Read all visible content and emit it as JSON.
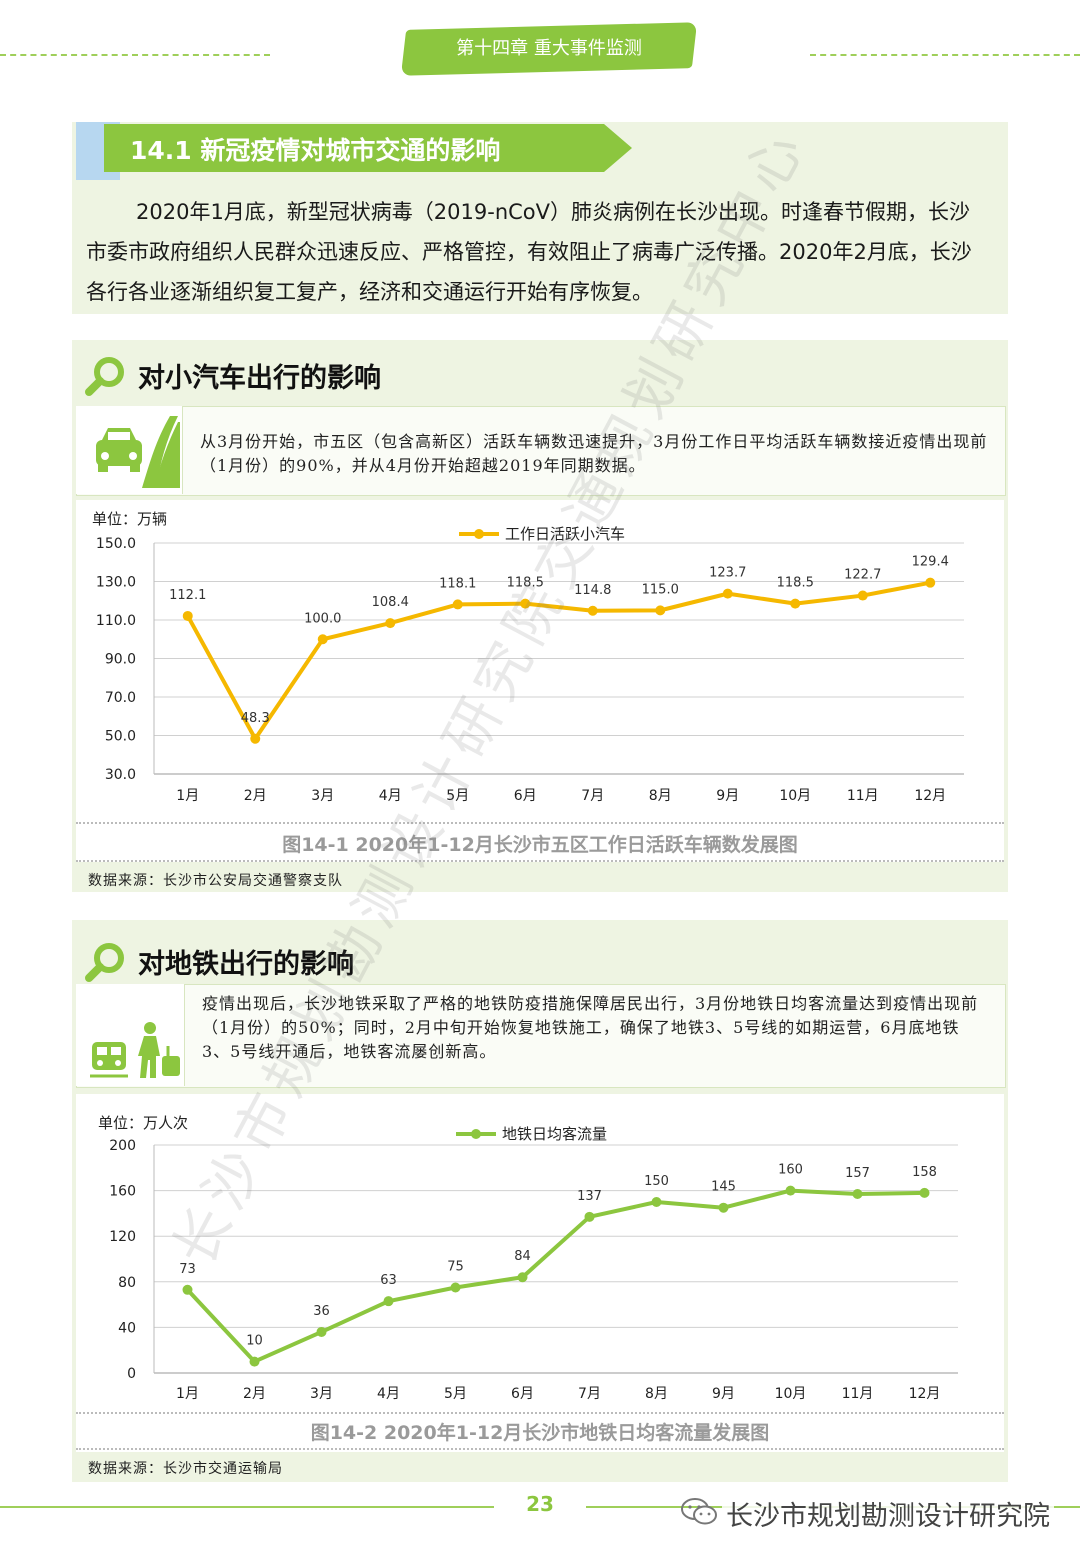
{
  "header": {
    "chapter": "第十四章  重大事件监测"
  },
  "section": {
    "title": "14.1 新冠疫情对城市交通的影响",
    "intro": "2020年1月底，新型冠状病毒（2019-nCoV）肺炎病例在长沙出现。时逢春节假期，长沙市委市政府组织人民群众迅速反应、严格管控，有效阻止了病毒广泛传播。2020年2月底，长沙各行各业逐渐组织复工复产，经济和交通运行开始有序恢复。"
  },
  "car": {
    "heading": "对小汽车出行的影响",
    "description": "从3月份开始，市五区（包含高新区）活跃车辆数迅速提升，3月份工作日平均活跃车辆数接近疫情出现前（1月份）的90%，并从4月份开始超越2019年同期数据。",
    "unit": "单位：万辆",
    "caption": "图14-1  2020年1-12月长沙市五区工作日活跃车辆数发展图",
    "source": "数据来源：长沙市公安局交通警察支队"
  },
  "metro": {
    "heading": "对地铁出行的影响",
    "description": "疫情出现后，长沙地铁采取了严格的地铁防疫措施保障居民出行，3月份地铁日均客流量达到疫情出现前（1月份）的50%；同时，2月中旬开始恢复地铁施工，确保了地铁3、5号线的如期运营，6月底地铁3、5号线开通后，地铁客流屡创新高。",
    "unit": "单位：万人次",
    "caption": "图14-2  2020年1-12月长沙市地铁日均客流量发展图",
    "source": "数据来源：长沙市交通运输局"
  },
  "watermark": {
    "text": "长沙市规划勘测设计研究院交通规划研究中心"
  },
  "footer": {
    "page": "23",
    "brand": "长沙市规划勘测设计研究院"
  },
  "colors": {
    "green": "#8cc63f",
    "yellow": "#f5b800",
    "panel": "#eef4e2"
  },
  "icons": [
    "magnifier-icon",
    "car-road-icon",
    "metro-traveler-icon",
    "wechat-icon"
  ],
  "chart_data": [
    {
      "type": "line",
      "categories": [
        "1月",
        "2月",
        "3月",
        "4月",
        "5月",
        "6月",
        "7月",
        "8月",
        "9月",
        "10月",
        "11月",
        "12月"
      ],
      "series": [
        {
          "name": "工作日活跃小汽车",
          "values": [
            112.1,
            48.3,
            100.0,
            108.4,
            118.1,
            118.5,
            114.8,
            115.0,
            123.7,
            118.5,
            122.7,
            129.4
          ]
        }
      ],
      "ylim": [
        30,
        150
      ],
      "yticks": [
        "30.0",
        "50.0",
        "70.0",
        "90.0",
        "110.0",
        "130.0",
        "150.0"
      ],
      "value_labels": [
        "112.1",
        "48.3",
        "100.0",
        "108.4",
        "118.1",
        "118.5",
        "114.8",
        "115.0",
        "123.7",
        "118.5",
        "122.7",
        "129.4"
      ],
      "ylabel": "单位：万辆",
      "grid": true,
      "legend": "top-center",
      "color": "#f5b800"
    },
    {
      "type": "line",
      "categories": [
        "1月",
        "2月",
        "3月",
        "4月",
        "5月",
        "6月",
        "7月",
        "8月",
        "9月",
        "10月",
        "11月",
        "12月"
      ],
      "series": [
        {
          "name": "地铁日均客流量",
          "values": [
            73,
            10,
            36,
            63,
            75,
            84,
            137,
            150,
            145,
            160,
            157,
            158
          ]
        }
      ],
      "ylim": [
        0,
        200
      ],
      "yticks": [
        "0",
        "40",
        "80",
        "120",
        "160",
        "200"
      ],
      "value_labels": [
        "73",
        "10",
        "36",
        "63",
        "75",
        "84",
        "137",
        "150",
        "145",
        "160",
        "157",
        "158"
      ],
      "ylabel": "单位：万人次",
      "grid": true,
      "legend": "top-center",
      "color": "#8cc63f"
    }
  ]
}
